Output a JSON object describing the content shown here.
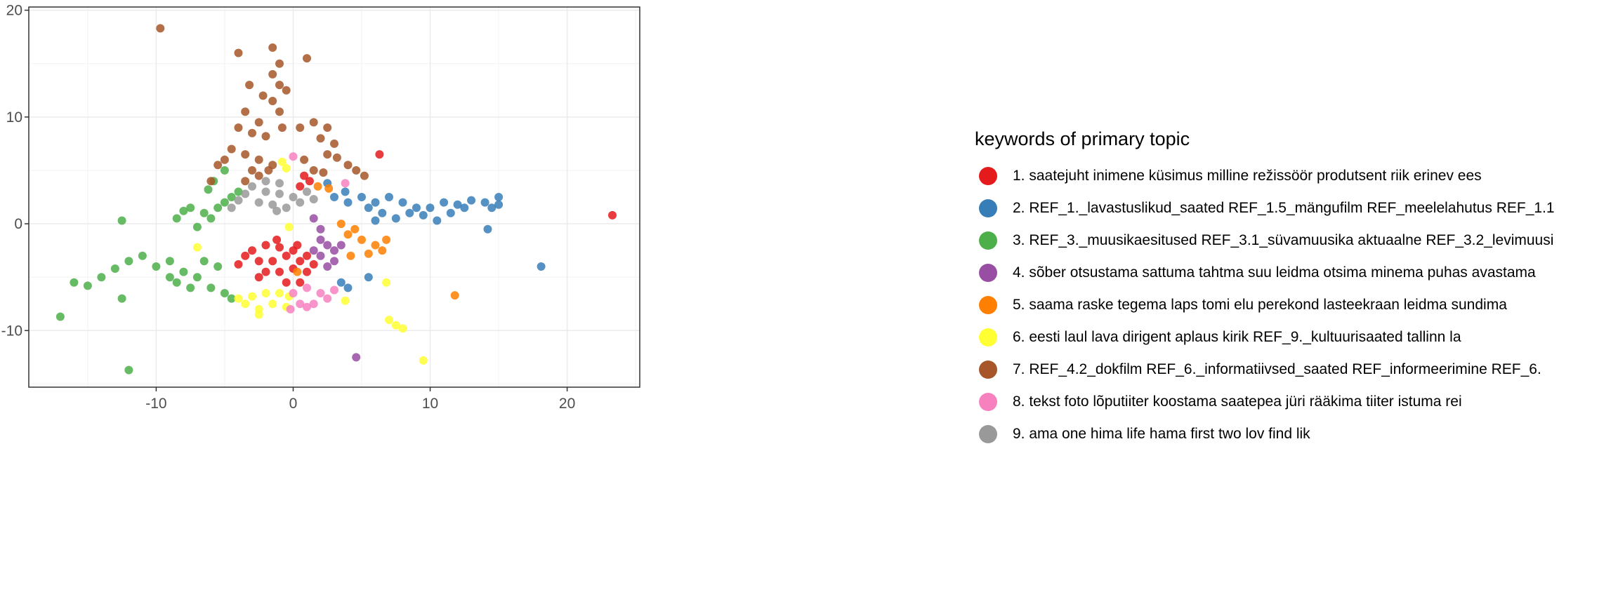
{
  "chart_data": {
    "type": "scatter",
    "title": "",
    "xlabel": "",
    "ylabel": "",
    "xlim": [
      -19.3,
      25.3
    ],
    "ylim": [
      -15.3,
      20.3
    ],
    "x_ticks": [
      -10,
      0,
      10,
      20
    ],
    "y_ticks": [
      -10,
      0,
      10,
      20
    ],
    "tick_labels_x": [
      "-10",
      "0",
      "10",
      "20"
    ],
    "tick_labels_y": [
      "-10",
      "0",
      "10",
      "20"
    ],
    "grid": true,
    "legend_position": "right",
    "legend_title": "keywords of primary topic",
    "series": [
      {
        "name": "1. saatejuht inimene küsimus milline režissöör produtsent riik erinev ees",
        "color": "#E41A1C",
        "points": [
          [
            -3,
            -2.5
          ],
          [
            -2,
            -2
          ],
          [
            -1,
            -2.2
          ],
          [
            0,
            -2.5
          ],
          [
            -2.5,
            -3.5
          ],
          [
            -1.5,
            -3.5
          ],
          [
            -0.5,
            -3
          ],
          [
            0.5,
            -3.5
          ],
          [
            1,
            -3
          ],
          [
            -3.5,
            -3
          ],
          [
            -2,
            -4.5
          ],
          [
            -1,
            -4.5
          ],
          [
            0,
            -4.2
          ],
          [
            1,
            -4.5
          ],
          [
            -2.5,
            -5
          ],
          [
            -0.5,
            -5.5
          ],
          [
            0.5,
            -5.5
          ],
          [
            -4,
            -3.8
          ],
          [
            1.5,
            -3.8
          ],
          [
            -1.2,
            -1.5
          ],
          [
            0.3,
            -2
          ],
          [
            0.8,
            4.5
          ],
          [
            1.2,
            4
          ],
          [
            0.5,
            3.5
          ],
          [
            6.3,
            6.5
          ],
          [
            23.3,
            0.8
          ]
        ]
      },
      {
        "name": "2. REF_1._lavastuslikud_saated REF_1.5_mängufilm REF_meelelahutus REF_1.1",
        "color": "#377EB8",
        "points": [
          [
            3,
            2.5
          ],
          [
            4,
            2
          ],
          [
            5,
            2.5
          ],
          [
            6,
            2
          ],
          [
            7,
            2.5
          ],
          [
            8,
            2
          ],
          [
            9,
            1.5
          ],
          [
            10,
            1.5
          ],
          [
            11,
            2
          ],
          [
            12,
            1.8
          ],
          [
            13,
            2.2
          ],
          [
            14,
            2
          ],
          [
            15,
            2.5
          ],
          [
            6.5,
            1
          ],
          [
            7.5,
            0.5
          ],
          [
            5.5,
            1.5
          ],
          [
            8.5,
            1
          ],
          [
            9.5,
            0.8
          ],
          [
            10.5,
            0.3
          ],
          [
            11.5,
            1
          ],
          [
            12.5,
            1.5
          ],
          [
            14.5,
            1.5
          ],
          [
            15,
            1.8
          ],
          [
            6,
            0.3
          ],
          [
            14.2,
            -0.5
          ],
          [
            18.1,
            -4
          ],
          [
            3.5,
            -5.5
          ],
          [
            4,
            -6
          ],
          [
            5.5,
            -5
          ],
          [
            2.5,
            3.8
          ],
          [
            3.8,
            3
          ]
        ]
      },
      {
        "name": "3. REF_3._muusikaesitused REF_3.1_süvamuusika aktuaalne REF_3.2_levimuusi",
        "color": "#4DAF4A",
        "points": [
          [
            -17,
            -8.7
          ],
          [
            -16,
            -5.5
          ],
          [
            -15,
            -5.8
          ],
          [
            -14,
            -5
          ],
          [
            -13,
            -4.2
          ],
          [
            -12,
            -3.5
          ],
          [
            -11,
            -3
          ],
          [
            -10,
            -4
          ],
          [
            -9,
            -3.5
          ],
          [
            -8,
            -4.5
          ],
          [
            -7,
            -5
          ],
          [
            -6,
            -6
          ],
          [
            -5,
            -6.5
          ],
          [
            -4.5,
            -7
          ],
          [
            -6.5,
            -3.5
          ],
          [
            -5.5,
            -4
          ],
          [
            -9,
            -5
          ],
          [
            -8.5,
            -5.5
          ],
          [
            -7.5,
            -6
          ],
          [
            -6.5,
            1
          ],
          [
            -5.5,
            1.5
          ],
          [
            -5,
            2
          ],
          [
            -4.5,
            2.5
          ],
          [
            -4,
            3
          ],
          [
            -6,
            0.5
          ],
          [
            -7,
            -0.3
          ],
          [
            -8,
            1.2
          ],
          [
            -7.5,
            1.5
          ],
          [
            -8.5,
            0.5
          ],
          [
            -6.2,
            3.2
          ],
          [
            -5.8,
            4
          ],
          [
            -5,
            5
          ],
          [
            -12.5,
            0.3
          ],
          [
            -12,
            -13.7
          ],
          [
            -12.5,
            -7
          ]
        ]
      },
      {
        "name": "4. sõber otsustama sattuma tahtma suu leidma otsima minema puhas avastama",
        "color": "#984EA3",
        "points": [
          [
            2,
            -1.5
          ],
          [
            2.5,
            -2
          ],
          [
            3,
            -2.5
          ],
          [
            2,
            -3
          ],
          [
            3,
            -3.5
          ],
          [
            2.5,
            -4
          ],
          [
            1.5,
            -2.5
          ],
          [
            3.5,
            -2
          ],
          [
            2,
            -0.5
          ],
          [
            1.5,
            0.5
          ],
          [
            4.6,
            -12.5
          ]
        ]
      },
      {
        "name": "5. saama raske tegema laps tomi elu perekond lasteekraan leidma sundima",
        "color": "#FF7F00",
        "points": [
          [
            4,
            -1
          ],
          [
            5,
            -1.5
          ],
          [
            6,
            -2
          ],
          [
            6.5,
            -2.5
          ],
          [
            5.5,
            -2.8
          ],
          [
            6.8,
            -1.5
          ],
          [
            4.5,
            -0.5
          ],
          [
            3.5,
            0
          ],
          [
            4.2,
            -3
          ],
          [
            1.8,
            3.5
          ],
          [
            2.6,
            3.3
          ],
          [
            11.8,
            -6.7
          ],
          [
            0.3,
            -4.5
          ]
        ]
      },
      {
        "name": "6. eesti laul lava dirigent aplaus kirik REF_9._kultuurisaated tallinn la",
        "color": "#FFFF33",
        "points": [
          [
            -3.5,
            -7.5
          ],
          [
            -2.5,
            -8
          ],
          [
            -1.5,
            -7.5
          ],
          [
            -0.5,
            -7.8
          ],
          [
            -2,
            -6.5
          ],
          [
            -3,
            -6.8
          ],
          [
            -1,
            -6.5
          ],
          [
            -2.5,
            -8.5
          ],
          [
            -4,
            -7
          ],
          [
            -0.3,
            -6.8
          ],
          [
            -0.8,
            5.8
          ],
          [
            -0.5,
            5.2
          ],
          [
            -0.3,
            -0.3
          ],
          [
            -7,
            -2.2
          ],
          [
            3.8,
            -7.2
          ],
          [
            6.8,
            -5.5
          ],
          [
            7,
            -9
          ],
          [
            7.5,
            -9.5
          ],
          [
            8,
            -9.8
          ],
          [
            9.5,
            -12.8
          ]
        ]
      },
      {
        "name": "7. REF_4.2_dokfilm REF_6._informatiivsed_saated REF_informeerimine REF_6.",
        "color": "#A65628",
        "points": [
          [
            -9.7,
            18.3
          ],
          [
            -1.5,
            16.5
          ],
          [
            -4,
            16
          ],
          [
            1,
            15.5
          ],
          [
            -1,
            15
          ],
          [
            -1.5,
            14
          ],
          [
            -1,
            13
          ],
          [
            -0.5,
            12.5
          ],
          [
            -1.5,
            11.5
          ],
          [
            -1,
            10.5
          ],
          [
            -3.5,
            10.5
          ],
          [
            -2.5,
            9.5
          ],
          [
            -4,
            9
          ],
          [
            -3,
            8.5
          ],
          [
            -2,
            8.2
          ],
          [
            -0.8,
            9
          ],
          [
            0.5,
            9
          ],
          [
            1.5,
            9.5
          ],
          [
            2.5,
            9
          ],
          [
            2,
            8
          ],
          [
            3,
            7.5
          ],
          [
            2.5,
            6.5
          ],
          [
            -4.5,
            7
          ],
          [
            -5,
            6
          ],
          [
            -3.5,
            6.5
          ],
          [
            -2.5,
            6
          ],
          [
            -1.5,
            5.5
          ],
          [
            -2.5,
            4.5
          ],
          [
            -3.5,
            4
          ],
          [
            -3,
            5
          ],
          [
            -1.8,
            5
          ],
          [
            -5.5,
            5.5
          ],
          [
            -6,
            4
          ],
          [
            0.8,
            6
          ],
          [
            1.5,
            5
          ],
          [
            2.2,
            4.8
          ],
          [
            3.2,
            6.2
          ],
          [
            4,
            5.5
          ],
          [
            4.6,
            5
          ],
          [
            5.2,
            4.5
          ],
          [
            -3.2,
            13
          ],
          [
            -2.2,
            12
          ]
        ]
      },
      {
        "name": "8. tekst foto lõputiiter koostama saatepea jüri rääkima tiiter istuma rei",
        "color": "#F781BF",
        "points": [
          [
            0,
            -6.5
          ],
          [
            1,
            -6
          ],
          [
            2,
            -6.5
          ],
          [
            1.5,
            -7.5
          ],
          [
            0.5,
            -7.5
          ],
          [
            2.5,
            -7
          ],
          [
            -0.2,
            -8
          ],
          [
            3,
            -6.2
          ],
          [
            1,
            -7.8
          ],
          [
            0,
            6.3
          ],
          [
            3.8,
            3.8
          ]
        ]
      },
      {
        "name": "9. ama one hima life hama first two lov find lik",
        "color": "#999999",
        "points": [
          [
            -3,
            3.5
          ],
          [
            -2,
            3
          ],
          [
            -1,
            2.8
          ],
          [
            0,
            2.5
          ],
          [
            -2.5,
            2
          ],
          [
            -1.5,
            1.8
          ],
          [
            -0.5,
            1.5
          ],
          [
            0.5,
            2
          ],
          [
            1,
            3
          ],
          [
            -3.5,
            2.8
          ],
          [
            -2,
            4
          ],
          [
            -1,
            3.8
          ],
          [
            -4,
            2.2
          ],
          [
            1.5,
            2.3
          ],
          [
            -1.2,
            1.2
          ],
          [
            -4.5,
            1.5
          ]
        ]
      }
    ]
  }
}
